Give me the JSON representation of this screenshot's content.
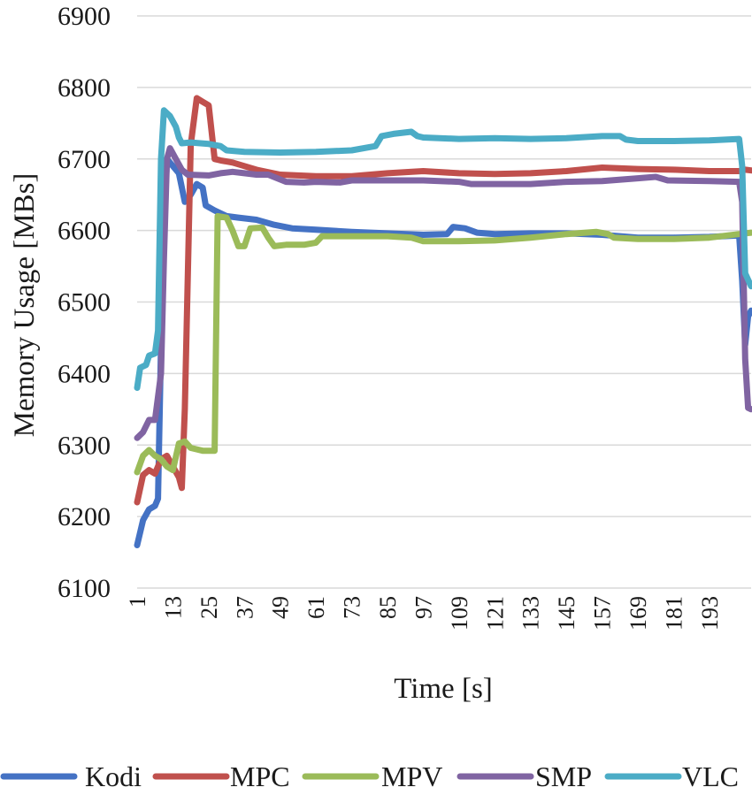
{
  "chart_data": {
    "type": "line",
    "title": "",
    "xlabel": "Time [s]",
    "ylabel": "Memory Usage [MBs]",
    "ylim": [
      6100,
      6900
    ],
    "yticks": [
      6100,
      6200,
      6300,
      6400,
      6500,
      6600,
      6700,
      6800,
      6900
    ],
    "xlim": [
      1,
      207
    ],
    "xticks": [
      1,
      13,
      25,
      37,
      49,
      61,
      73,
      85,
      97,
      109,
      121,
      133,
      145,
      157,
      169,
      181,
      193
    ],
    "grid": true,
    "legend_position": "bottom",
    "series": [
      {
        "name": "Kodi",
        "color": "#4472C4",
        "points": [
          [
            1,
            6160
          ],
          [
            3,
            6195
          ],
          [
            5,
            6210
          ],
          [
            7,
            6215
          ],
          [
            8,
            6225
          ],
          [
            9,
            6440
          ],
          [
            10,
            6600
          ],
          [
            11,
            6700
          ],
          [
            13,
            6690
          ],
          [
            15,
            6680
          ],
          [
            17,
            6640
          ],
          [
            19,
            6650
          ],
          [
            21,
            6665
          ],
          [
            23,
            6660
          ],
          [
            24,
            6635
          ],
          [
            27,
            6628
          ],
          [
            31,
            6620
          ],
          [
            35,
            6618
          ],
          [
            41,
            6615
          ],
          [
            47,
            6608
          ],
          [
            53,
            6603
          ],
          [
            61,
            6601
          ],
          [
            73,
            6598
          ],
          [
            85,
            6596
          ],
          [
            97,
            6594
          ],
          [
            105,
            6595
          ],
          [
            107,
            6605
          ],
          [
            111,
            6603
          ],
          [
            115,
            6597
          ],
          [
            121,
            6595
          ],
          [
            133,
            6596
          ],
          [
            145,
            6596
          ],
          [
            157,
            6594
          ],
          [
            169,
            6590
          ],
          [
            181,
            6590
          ],
          [
            193,
            6591
          ],
          [
            203,
            6593
          ],
          [
            204,
            6530
          ],
          [
            205,
            6440
          ],
          [
            206,
            6480
          ],
          [
            207,
            6488
          ]
        ]
      },
      {
        "name": "MPC",
        "color": "#C0504D",
        "points": [
          [
            1,
            6220
          ],
          [
            3,
            6258
          ],
          [
            5,
            6265
          ],
          [
            7,
            6260
          ],
          [
            9,
            6280
          ],
          [
            11,
            6285
          ],
          [
            13,
            6270
          ],
          [
            15,
            6255
          ],
          [
            16,
            6240
          ],
          [
            17,
            6350
          ],
          [
            19,
            6720
          ],
          [
            21,
            6785
          ],
          [
            23,
            6780
          ],
          [
            25,
            6775
          ],
          [
            27,
            6700
          ],
          [
            29,
            6698
          ],
          [
            33,
            6695
          ],
          [
            37,
            6690
          ],
          [
            41,
            6685
          ],
          [
            49,
            6678
          ],
          [
            61,
            6676
          ],
          [
            73,
            6676
          ],
          [
            85,
            6680
          ],
          [
            97,
            6683
          ],
          [
            109,
            6680
          ],
          [
            121,
            6679
          ],
          [
            133,
            6680
          ],
          [
            145,
            6683
          ],
          [
            157,
            6688
          ],
          [
            169,
            6686
          ],
          [
            181,
            6685
          ],
          [
            193,
            6683
          ],
          [
            203,
            6683
          ],
          [
            205,
            6685
          ],
          [
            207,
            6684
          ]
        ]
      },
      {
        "name": "MPV",
        "color": "#9BBB59",
        "points": [
          [
            1,
            6262
          ],
          [
            3,
            6285
          ],
          [
            5,
            6293
          ],
          [
            7,
            6285
          ],
          [
            9,
            6280
          ],
          [
            11,
            6270
          ],
          [
            13,
            6265
          ],
          [
            15,
            6302
          ],
          [
            17,
            6305
          ],
          [
            19,
            6296
          ],
          [
            21,
            6294
          ],
          [
            23,
            6292
          ],
          [
            25,
            6292
          ],
          [
            27,
            6292
          ],
          [
            28,
            6620
          ],
          [
            31,
            6618
          ],
          [
            33,
            6600
          ],
          [
            35,
            6578
          ],
          [
            37,
            6578
          ],
          [
            39,
            6603
          ],
          [
            43,
            6604
          ],
          [
            45,
            6590
          ],
          [
            47,
            6578
          ],
          [
            51,
            6580
          ],
          [
            57,
            6580
          ],
          [
            61,
            6583
          ],
          [
            63,
            6592
          ],
          [
            73,
            6592
          ],
          [
            85,
            6592
          ],
          [
            93,
            6590
          ],
          [
            97,
            6585
          ],
          [
            109,
            6585
          ],
          [
            121,
            6586
          ],
          [
            133,
            6590
          ],
          [
            145,
            6595
          ],
          [
            155,
            6598
          ],
          [
            159,
            6595
          ],
          [
            161,
            6590
          ],
          [
            169,
            6588
          ],
          [
            181,
            6588
          ],
          [
            193,
            6590
          ],
          [
            203,
            6595
          ],
          [
            207,
            6597
          ]
        ]
      },
      {
        "name": "SMP",
        "color": "#8064A2",
        "points": [
          [
            1,
            6310
          ],
          [
            3,
            6318
          ],
          [
            5,
            6335
          ],
          [
            7,
            6335
          ],
          [
            9,
            6400
          ],
          [
            10,
            6560
          ],
          [
            11,
            6700
          ],
          [
            12,
            6715
          ],
          [
            14,
            6700
          ],
          [
            16,
            6685
          ],
          [
            18,
            6678
          ],
          [
            25,
            6677
          ],
          [
            29,
            6680
          ],
          [
            33,
            6682
          ],
          [
            37,
            6680
          ],
          [
            41,
            6678
          ],
          [
            45,
            6678
          ],
          [
            51,
            6668
          ],
          [
            57,
            6667
          ],
          [
            61,
            6668
          ],
          [
            69,
            6667
          ],
          [
            73,
            6670
          ],
          [
            85,
            6670
          ],
          [
            97,
            6670
          ],
          [
            109,
            6668
          ],
          [
            113,
            6665
          ],
          [
            121,
            6665
          ],
          [
            133,
            6665
          ],
          [
            145,
            6668
          ],
          [
            157,
            6669
          ],
          [
            169,
            6673
          ],
          [
            175,
            6675
          ],
          [
            179,
            6670
          ],
          [
            193,
            6669
          ],
          [
            203,
            6668
          ],
          [
            204,
            6640
          ],
          [
            205,
            6420
          ],
          [
            206,
            6352
          ],
          [
            207,
            6350
          ]
        ]
      },
      {
        "name": "VLC",
        "color": "#4BACC6",
        "points": [
          [
            1,
            6380
          ],
          [
            2,
            6408
          ],
          [
            4,
            6412
          ],
          [
            5,
            6425
          ],
          [
            7,
            6428
          ],
          [
            8,
            6460
          ],
          [
            9,
            6700
          ],
          [
            10,
            6768
          ],
          [
            12,
            6760
          ],
          [
            14,
            6745
          ],
          [
            15,
            6730
          ],
          [
            16,
            6722
          ],
          [
            19,
            6723
          ],
          [
            25,
            6721
          ],
          [
            29,
            6718
          ],
          [
            31,
            6712
          ],
          [
            37,
            6710
          ],
          [
            49,
            6709
          ],
          [
            61,
            6710
          ],
          [
            73,
            6712
          ],
          [
            81,
            6718
          ],
          [
            83,
            6732
          ],
          [
            87,
            6735
          ],
          [
            93,
            6738
          ],
          [
            95,
            6732
          ],
          [
            97,
            6730
          ],
          [
            109,
            6728
          ],
          [
            121,
            6729
          ],
          [
            133,
            6728
          ],
          [
            145,
            6729
          ],
          [
            157,
            6732
          ],
          [
            163,
            6732
          ],
          [
            165,
            6727
          ],
          [
            169,
            6725
          ],
          [
            181,
            6725
          ],
          [
            193,
            6726
          ],
          [
            203,
            6728
          ],
          [
            204,
            6690
          ],
          [
            205,
            6540
          ],
          [
            207,
            6522
          ]
        ]
      }
    ]
  }
}
